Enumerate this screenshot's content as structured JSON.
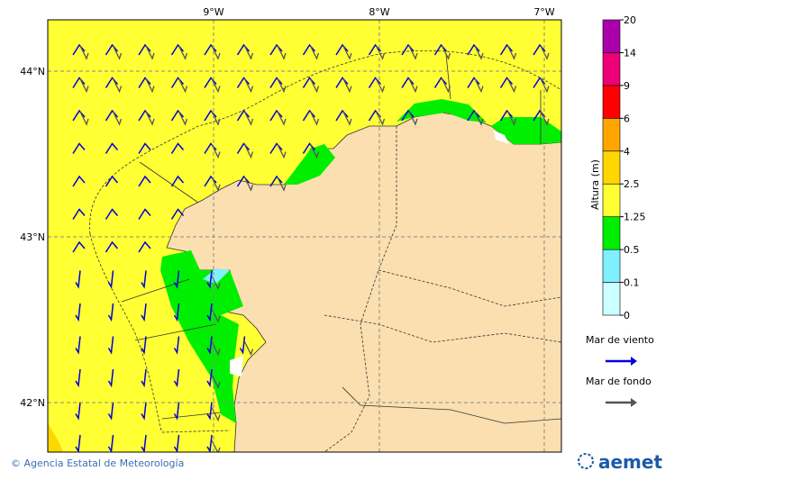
{
  "map": {
    "lon_labels": [
      "9°W",
      "8°W",
      "7°W"
    ],
    "lat_labels": [
      "44°N",
      "43°N",
      "42°N"
    ]
  },
  "colorbar": {
    "title": "Altura (m)",
    "levels": [
      0,
      0.1,
      0.5,
      1.25,
      2.5,
      4,
      6,
      9,
      14,
      20
    ],
    "colors": [
      "#ccffff",
      "#80f0ff",
      "#00ee00",
      "#ffff33",
      "#ffd700",
      "#ffa500",
      "#ff0000",
      "#ee0077",
      "#aa00aa"
    ]
  },
  "legend": {
    "items": [
      {
        "label": "Mar de viento",
        "color": "#0000dd"
      },
      {
        "label": "Mar de fondo",
        "color": "#555555"
      }
    ]
  },
  "footer": {
    "credit": "© Agencia Estatal de Meteorología",
    "logo": "aemet"
  }
}
